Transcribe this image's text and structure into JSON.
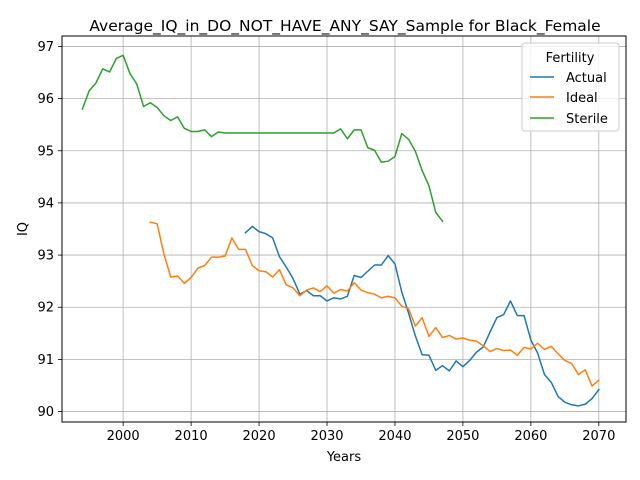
{
  "chart_data": {
    "type": "line",
    "title": "Average_IQ_in_DO_NOT_HAVE_ANY_SAY_Sample for Black_Female",
    "xlabel": "Years",
    "ylabel": "IQ",
    "xlim": [
      1991,
      2074
    ],
    "ylim": [
      89.8,
      97.2
    ],
    "xticks": [
      2000,
      2010,
      2020,
      2030,
      2040,
      2050,
      2060,
      2070
    ],
    "yticks": [
      90,
      91,
      92,
      93,
      94,
      95,
      96,
      97
    ],
    "grid": true,
    "legend": {
      "title": "Fertility",
      "position": "top-right"
    },
    "series": [
      {
        "name": "Actual",
        "color": "#1f77b4",
        "x": [
          2018,
          2019,
          2020,
          2021,
          2022,
          2023,
          2024,
          2025,
          2026,
          2027,
          2028,
          2029,
          2030,
          2031,
          2032,
          2033,
          2034,
          2035,
          2036,
          2037,
          2038,
          2039,
          2040,
          2041,
          2042,
          2043,
          2044,
          2045,
          2046,
          2047,
          2048,
          2049,
          2050,
          2051,
          2052,
          2053,
          2054,
          2055,
          2056,
          2057,
          2058,
          2059,
          2060,
          2061,
          2062,
          2063,
          2064,
          2065,
          2066,
          2067,
          2068,
          2069,
          2070
        ],
        "values": [
          93.43,
          93.55,
          93.45,
          93.41,
          93.33,
          92.97,
          92.77,
          92.55,
          92.25,
          92.32,
          92.22,
          92.22,
          92.12,
          92.18,
          92.16,
          92.21,
          92.61,
          92.57,
          92.69,
          92.81,
          92.81,
          92.99,
          92.83,
          92.29,
          91.89,
          91.45,
          91.09,
          91.08,
          90.79,
          90.88,
          90.78,
          90.97,
          90.86,
          90.98,
          91.14,
          91.24,
          91.53,
          91.8,
          91.86,
          92.12,
          91.84,
          91.84,
          91.37,
          91.12,
          90.71,
          90.56,
          90.29,
          90.18,
          90.13,
          90.11,
          90.14,
          90.25,
          90.42
        ]
      },
      {
        "name": "Ideal",
        "color": "#ff7f0e",
        "x": [
          2004,
          2005,
          2006,
          2007,
          2008,
          2009,
          2010,
          2011,
          2012,
          2013,
          2014,
          2015,
          2016,
          2017,
          2018,
          2019,
          2020,
          2021,
          2022,
          2023,
          2024,
          2025,
          2026,
          2027,
          2028,
          2029,
          2030,
          2031,
          2032,
          2033,
          2034,
          2035,
          2036,
          2037,
          2038,
          2039,
          2040,
          2041,
          2042,
          2043,
          2044,
          2045,
          2046,
          2047,
          2048,
          2049,
          2050,
          2051,
          2052,
          2053,
          2054,
          2055,
          2056,
          2057,
          2058,
          2059,
          2060,
          2061,
          2062,
          2063,
          2064,
          2065,
          2066,
          2067,
          2068,
          2069,
          2070
        ],
        "values": [
          93.63,
          93.6,
          93.02,
          92.58,
          92.6,
          92.46,
          92.57,
          92.75,
          92.8,
          92.96,
          92.96,
          92.98,
          93.33,
          93.11,
          93.11,
          92.8,
          92.7,
          92.68,
          92.58,
          92.72,
          92.43,
          92.37,
          92.22,
          92.33,
          92.37,
          92.3,
          92.41,
          92.27,
          92.34,
          92.31,
          92.47,
          92.33,
          92.28,
          92.25,
          92.18,
          92.21,
          92.18,
          92.02,
          91.97,
          91.64,
          91.8,
          91.44,
          91.61,
          91.42,
          91.46,
          91.39,
          91.41,
          91.37,
          91.35,
          91.26,
          91.15,
          91.21,
          91.17,
          91.18,
          91.08,
          91.23,
          91.2,
          91.31,
          91.19,
          91.25,
          91.11,
          90.98,
          90.92,
          90.71,
          90.8,
          90.49,
          90.6
        ]
      },
      {
        "name": "Sterile",
        "color": "#2ca02c",
        "x": [
          1994,
          1995,
          1996,
          1997,
          1998,
          1999,
          2000,
          2001,
          2002,
          2003,
          2004,
          2005,
          2006,
          2007,
          2008,
          2009,
          2010,
          2011,
          2012,
          2013,
          2014,
          2015,
          2016,
          2017,
          2018,
          2019,
          2020,
          2021,
          2022,
          2023,
          2024,
          2025,
          2026,
          2027,
          2028,
          2029,
          2030,
          2031,
          2032,
          2033,
          2034,
          2035,
          2036,
          2037,
          2038,
          2039,
          2040,
          2041,
          2042,
          2043,
          2044,
          2045,
          2046,
          2047
        ],
        "values": [
          95.8,
          96.15,
          96.3,
          96.57,
          96.51,
          96.77,
          96.83,
          96.48,
          96.28,
          95.85,
          95.92,
          95.83,
          95.67,
          95.58,
          95.65,
          95.43,
          95.37,
          95.37,
          95.4,
          95.27,
          95.36,
          95.34,
          95.34,
          95.34,
          95.34,
          95.34,
          95.34,
          95.34,
          95.34,
          95.34,
          95.34,
          95.34,
          95.34,
          95.34,
          95.34,
          95.34,
          95.34,
          95.34,
          95.42,
          95.23,
          95.4,
          95.4,
          95.06,
          95.01,
          94.78,
          94.8,
          94.89,
          95.33,
          95.22,
          94.99,
          94.62,
          94.33,
          93.82,
          93.65
        ]
      }
    ]
  }
}
